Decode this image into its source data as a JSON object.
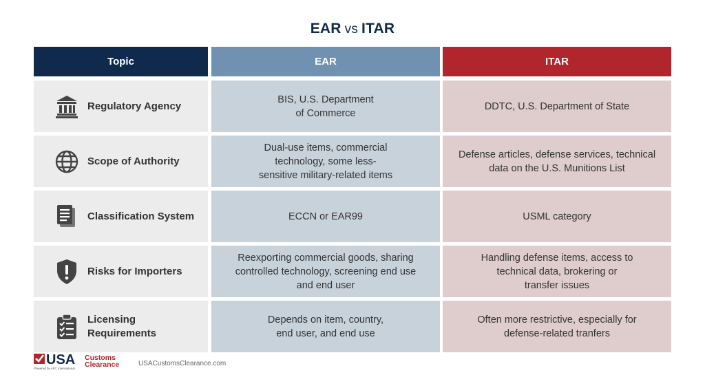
{
  "title": {
    "left": "EAR",
    "vs": "vs",
    "right": "ITAR"
  },
  "headers": {
    "topic": "Topic",
    "ear": "EAR",
    "itar": "ITAR"
  },
  "rows": [
    {
      "topic": "Regulatory Agency",
      "icon": "building-icon",
      "ear": "BIS, U.S. Department\nof Commerce",
      "itar": "DDTC, U.S. Department of State"
    },
    {
      "topic": "Scope of Authority",
      "icon": "globe-icon",
      "ear": "Dual-use items, commercial\ntechnology, some less-\nsensitive military-related items",
      "itar": "Defense articles, defense services, technical\ndata on the U.S. Munitions List"
    },
    {
      "topic": "Classification System",
      "icon": "document-icon",
      "ear": "ECCN or EAR99",
      "itar": "USML category"
    },
    {
      "topic": "Risks for Importers",
      "icon": "shield-alert-icon",
      "ear": "Reexporting commercial goods, sharing\ncontrolled technology, screening end use\nand end user",
      "itar": "Handling defense items, access to\ntechnical data, brokering or\ntransfer issues"
    },
    {
      "topic": "Licensing\nRequirements",
      "icon": "clipboard-checklist-icon",
      "ear": "Depends on item, country,\nend user, and end use",
      "itar": "Often more restrictive, especially for\ndefense-related tranfers"
    }
  ],
  "footer": {
    "logo_main": "USA",
    "logo_word1": "Customs",
    "logo_word2": "Clearance",
    "logo_tagline": "Powered by AFC International",
    "url": "USACustomsClearance.com"
  },
  "colors": {
    "navy": "#0f2a4d",
    "ear_blue": "#7092b0",
    "itar_red": "#b1262c"
  }
}
